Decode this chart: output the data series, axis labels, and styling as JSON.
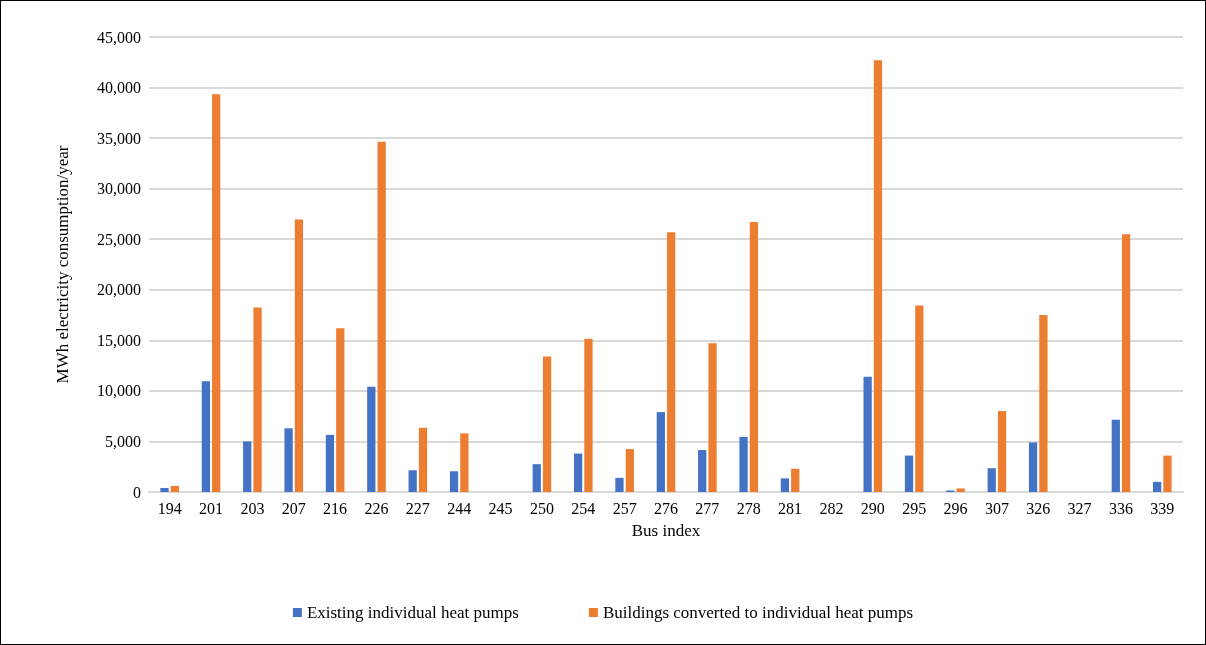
{
  "chart_data": {
    "type": "bar",
    "xlabel": "Bus index",
    "ylabel": "MWh electricity consumption/year",
    "categories": [
      "194",
      "201",
      "203",
      "207",
      "216",
      "226",
      "227",
      "244",
      "245",
      "250",
      "254",
      "257",
      "276",
      "277",
      "278",
      "281",
      "282",
      "290",
      "295",
      "296",
      "307",
      "326",
      "327",
      "336",
      "339"
    ],
    "series": [
      {
        "name": "Existing individual heat pumps",
        "color": "#4472c4",
        "values": [
          400,
          10950,
          5000,
          6300,
          5650,
          10400,
          2150,
          2050,
          0,
          2750,
          3800,
          1400,
          7900,
          4150,
          5450,
          1350,
          0,
          11400,
          3600,
          150,
          2350,
          4900,
          0,
          7150,
          1000
        ]
      },
      {
        "name": "Buildings converted to individual heat pumps",
        "color": "#ed7d31",
        "values": [
          600,
          39350,
          18250,
          26950,
          16200,
          34650,
          6350,
          5800,
          0,
          13400,
          15150,
          4250,
          25700,
          14700,
          26700,
          2300,
          0,
          42700,
          18450,
          350,
          8000,
          17500,
          0,
          25500,
          3600
        ]
      }
    ],
    "ylim": [
      0,
      45000
    ],
    "yticks": [
      {
        "value": 0,
        "label": "0"
      },
      {
        "value": 5000,
        "label": "5,000"
      },
      {
        "value": 10000,
        "label": "10,000"
      },
      {
        "value": 15000,
        "label": "15,000"
      },
      {
        "value": 20000,
        "label": "20,000"
      },
      {
        "value": 25000,
        "label": "25,000"
      },
      {
        "value": 30000,
        "label": "30,000"
      },
      {
        "value": 35000,
        "label": "35,000"
      },
      {
        "value": 40000,
        "label": "40,000"
      },
      {
        "value": 45000,
        "label": "45,000"
      }
    ],
    "grid": "y",
    "legend": "bottom"
  }
}
